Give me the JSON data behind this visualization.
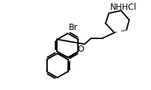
{
  "background_color": "#ffffff",
  "line_color": "#000000",
  "aromatic_color": "#7777aa",
  "line_width": 1.4,
  "font_size": 8.5,
  "label_NH": "NH",
  "label_HCl": "HCl",
  "label_Br": "Br",
  "label_O": "O"
}
